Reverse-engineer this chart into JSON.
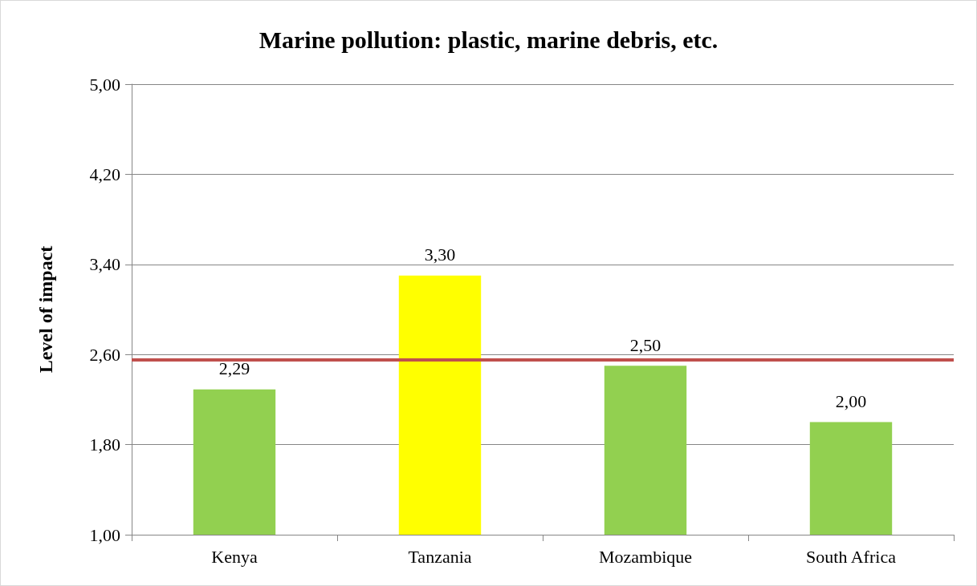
{
  "chart_data": {
    "type": "bar",
    "title": "Marine pollution: plastic, marine debris, etc.",
    "ylabel": "Level of impact",
    "categories": [
      "Kenya",
      "Tanzania",
      "Mozambique",
      "South Africa"
    ],
    "values": [
      2.29,
      3.3,
      2.5,
      2.0
    ],
    "colors": [
      "#92d050",
      "#ffff00",
      "#92d050",
      "#92d050"
    ],
    "value_labels": [
      "2,29",
      "3,30",
      "2,50",
      "2,00"
    ],
    "ylim": [
      1,
      5
    ],
    "yticks": [
      {
        "value": 1,
        "label": "1,00"
      },
      {
        "value": 1.8,
        "label": "1,80"
      },
      {
        "value": 2.6,
        "label": "2,60"
      },
      {
        "value": 3.4,
        "label": "3,40"
      },
      {
        "value": 4.2,
        "label": "4,20"
      },
      {
        "value": 5,
        "label": "5,00"
      }
    ],
    "ref_lines": [
      {
        "axis": "y",
        "value": 2.55,
        "color": "#c0504d"
      }
    ],
    "grid": "y"
  }
}
